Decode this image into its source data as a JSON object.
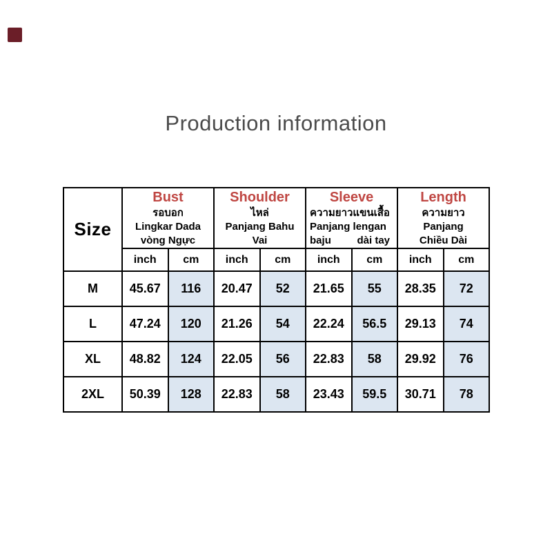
{
  "colors": {
    "accent_red": "#bf4642",
    "cm_cell_bg": "#dce6f1",
    "title_gray": "#4b4b4b",
    "corner_mark": "#6b1e28"
  },
  "chart_data": {
    "type": "table",
    "title": "Production information",
    "row_header": "Size",
    "column_groups": [
      {
        "name": "Bust",
        "lines": [
          "รอบอก",
          "Lingkar Dada",
          "vòng Ngực"
        ]
      },
      {
        "name": "Shoulder",
        "lines": [
          "ไหล่",
          "Panjang Bahu",
          "Vai"
        ]
      },
      {
        "name": "Sleeve",
        "lines": [
          "ความยาวแขนเสื้อ",
          "Panjang lengan"
        ],
        "split_line": {
          "left": "baju",
          "right": "dài tay"
        }
      },
      {
        "name": "Length",
        "lines": [
          "ความยาว",
          "Panjang",
          "Chiều Dài"
        ]
      }
    ],
    "unit_row": [
      "inch",
      "cm",
      "inch",
      "cm",
      "inch",
      "cm",
      "inch",
      "cm"
    ],
    "rows": [
      {
        "size": "M",
        "values": [
          "45.67",
          "116",
          "20.47",
          "52",
          "21.65",
          "55",
          "28.35",
          "72"
        ]
      },
      {
        "size": "L",
        "values": [
          "47.24",
          "120",
          "21.26",
          "54",
          "22.24",
          "56.5",
          "29.13",
          "74"
        ]
      },
      {
        "size": "XL",
        "values": [
          "48.82",
          "124",
          "22.05",
          "56",
          "22.83",
          "58",
          "29.92",
          "76"
        ]
      },
      {
        "size": "2XL",
        "values": [
          "50.39",
          "128",
          "22.83",
          "58",
          "23.43",
          "59.5",
          "30.71",
          "78"
        ]
      }
    ]
  }
}
